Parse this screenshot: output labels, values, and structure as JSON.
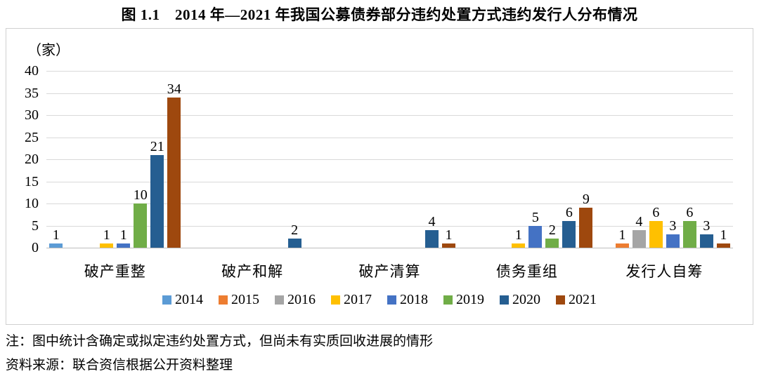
{
  "chart_data": {
    "type": "bar",
    "title": "图 1.1　2014 年—2021 年我国公募债券部分违约处置方式违约发行人分布情况",
    "unit_label": "（家）",
    "xlabel": "",
    "ylabel": "（家）",
    "ylim": [
      0,
      40
    ],
    "ytick_step": 5,
    "yticks": [
      0,
      5,
      10,
      15,
      20,
      25,
      30,
      35,
      40
    ],
    "grid": true,
    "legend_position": "bottom",
    "categories": [
      "破产重整",
      "破产和解",
      "破产清算",
      "债务重组",
      "发行人自筹"
    ],
    "series": [
      {
        "name": "2014",
        "color": "#5B9BD5",
        "values": [
          1,
          0,
          0,
          0,
          0
        ]
      },
      {
        "name": "2015",
        "color": "#ED7D31",
        "values": [
          0,
          0,
          0,
          0,
          1
        ]
      },
      {
        "name": "2016",
        "color": "#A5A5A5",
        "values": [
          0,
          0,
          0,
          0,
          4
        ]
      },
      {
        "name": "2017",
        "color": "#FFC000",
        "values": [
          1,
          0,
          0,
          1,
          6
        ]
      },
      {
        "name": "2018",
        "color": "#4472C4",
        "values": [
          1,
          0,
          0,
          5,
          3
        ]
      },
      {
        "name": "2019",
        "color": "#70AD47",
        "values": [
          10,
          0,
          0,
          2,
          6
        ]
      },
      {
        "name": "2020",
        "color": "#255E91",
        "values": [
          21,
          2,
          4,
          6,
          3
        ]
      },
      {
        "name": "2021",
        "color": "#9E480E",
        "values": [
          34,
          0,
          1,
          9,
          1
        ]
      }
    ]
  },
  "notes": {
    "annotation": "注：图中统计含确定或拟定违约处置方式，但尚未有实质回收进展的情形",
    "source": "资料来源：联合资信根据公开资料整理"
  }
}
